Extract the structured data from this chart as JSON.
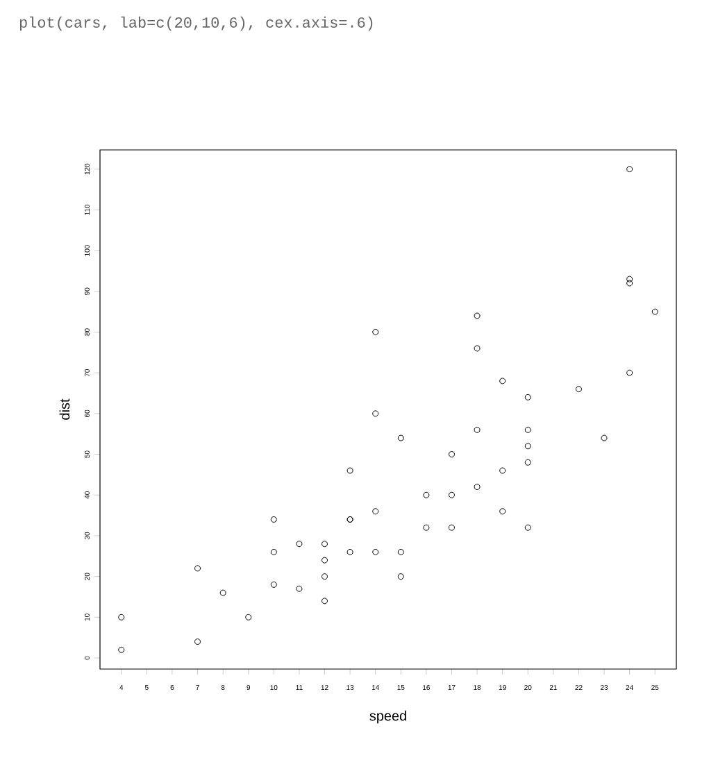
{
  "chart_data": {
    "type": "scatter",
    "title": "plot(cars, lab=c(20,10,6), cex.axis=.6)",
    "xlabel": "speed",
    "ylabel": "dist",
    "marker": "circle",
    "color": "#000000",
    "x": [
      4,
      4,
      7,
      7,
      8,
      9,
      10,
      10,
      10,
      11,
      11,
      12,
      12,
      12,
      12,
      13,
      13,
      13,
      13,
      14,
      14,
      14,
      14,
      15,
      15,
      15,
      16,
      16,
      17,
      17,
      17,
      18,
      18,
      18,
      18,
      19,
      19,
      19,
      20,
      20,
      20,
      20,
      20,
      22,
      23,
      24,
      24,
      24,
      24,
      25
    ],
    "values": [
      2,
      10,
      4,
      22,
      16,
      10,
      18,
      26,
      34,
      17,
      28,
      14,
      20,
      24,
      28,
      26,
      34,
      34,
      46,
      26,
      36,
      60,
      80,
      20,
      26,
      54,
      32,
      40,
      32,
      40,
      50,
      42,
      56,
      76,
      84,
      36,
      46,
      68,
      32,
      48,
      52,
      56,
      64,
      66,
      54,
      70,
      92,
      93,
      120,
      85
    ],
    "xlim": [
      3.16,
      25.84
    ],
    "ylim": [
      -2.72,
      124.72
    ],
    "xticks": [
      4,
      5,
      6,
      7,
      8,
      9,
      10,
      11,
      12,
      13,
      14,
      15,
      16,
      17,
      18,
      19,
      20,
      21,
      22,
      23,
      24,
      25
    ],
    "yticks": [
      0,
      10,
      20,
      30,
      40,
      50,
      60,
      70,
      80,
      90,
      100,
      110,
      120
    ]
  }
}
